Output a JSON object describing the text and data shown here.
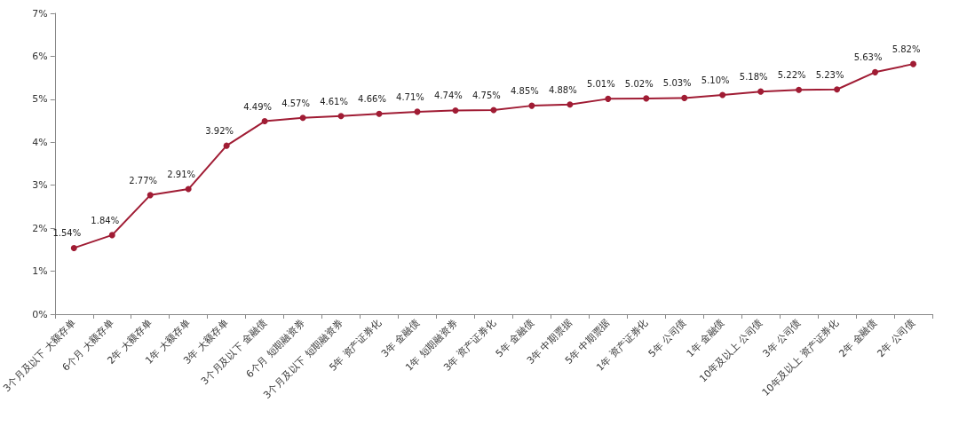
{
  "chart_data": {
    "type": "line",
    "categories": [
      "3个月及以下 大额存单",
      "6个月 大额存单",
      "2年 大额存单",
      "1年 大额存单",
      "3年 大额存单",
      "3个月及以下 金融债",
      "6个月 短期融资券",
      "3个月及以下 短期融资券",
      "5年 资产证券化",
      "3年 金融债",
      "1年 短期融资券",
      "3年 资产证券化",
      "5年 金融债",
      "3年 中期票据",
      "5年 中期票据",
      "1年 资产证券化",
      "5年 公司债",
      "1年 金融债",
      "10年及以上 公司债",
      "3年 公司债",
      "10年及以上 资产证券化",
      "2年 金融债",
      "2年 公司债"
    ],
    "values": [
      1.54,
      1.84,
      2.77,
      2.91,
      3.92,
      4.49,
      4.57,
      4.61,
      4.66,
      4.71,
      4.74,
      4.75,
      4.85,
      4.88,
      5.01,
      5.02,
      5.03,
      5.1,
      5.18,
      5.22,
      5.23,
      5.63,
      5.82
    ],
    "value_labels": [
      "1.54%",
      "1.84%",
      "2.77%",
      "2.91%",
      "3.92%",
      "4.49%",
      "4.57%",
      "4.61%",
      "4.66%",
      "4.71%",
      "4.74%",
      "4.75%",
      "4.85%",
      "4.88%",
      "5.01%",
      "5.02%",
      "5.03%",
      "5.10%",
      "5.18%",
      "5.22%",
      "5.23%",
      "5.63%",
      "5.82%"
    ],
    "color": "#a01c34",
    "marker": "circle",
    "line_style": "solid",
    "ylim": [
      0,
      7
    ],
    "yticks": [
      {
        "value": 0,
        "label": "0%"
      },
      {
        "value": 1,
        "label": "1%"
      },
      {
        "value": 2,
        "label": "2%"
      },
      {
        "value": 3,
        "label": "3%"
      },
      {
        "value": 4,
        "label": "4%"
      },
      {
        "value": 5,
        "label": "5%"
      },
      {
        "value": 6,
        "label": "6%"
      },
      {
        "value": 7,
        "label": "7%"
      }
    ]
  }
}
